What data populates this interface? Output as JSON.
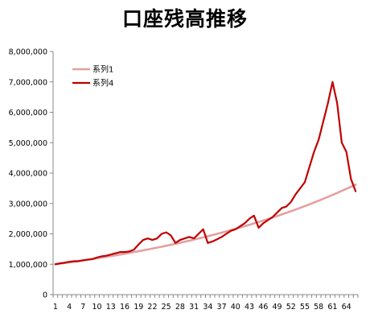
{
  "chart_data": {
    "type": "line",
    "title": "口座残高推移",
    "xlabel": "",
    "ylabel": "",
    "ylim": [
      0,
      8000000
    ],
    "y_ticks": [
      "0",
      "1,000,000",
      "2,000,000",
      "3,000,000",
      "4,000,000",
      "5,000,000",
      "6,000,000",
      "7,000,000",
      "8,000,000"
    ],
    "x_tick_labels": [
      "1",
      "4",
      "7",
      "10",
      "13",
      "16",
      "19",
      "22",
      "25",
      "28",
      "31",
      "34",
      "37",
      "40",
      "43",
      "46",
      "49",
      "52",
      "55",
      "58",
      "61",
      "64"
    ],
    "grid": false,
    "legend_position": "top-left",
    "x": [
      1,
      2,
      3,
      4,
      5,
      6,
      7,
      8,
      9,
      10,
      11,
      12,
      13,
      14,
      15,
      16,
      17,
      18,
      19,
      20,
      21,
      22,
      23,
      24,
      25,
      26,
      27,
      28,
      29,
      30,
      31,
      32,
      33,
      34,
      35,
      36,
      37,
      38,
      39,
      40,
      41,
      42,
      43,
      44,
      45,
      46,
      47,
      48,
      49,
      50,
      51,
      52,
      53,
      54,
      55,
      56,
      57,
      58,
      59,
      60,
      61,
      62,
      63,
      64,
      65,
      66
    ],
    "series": [
      {
        "name": "系列1",
        "color": "#e3a0a0",
        "values": [
          1000000,
          1020000,
          1040000,
          1061000,
          1082000,
          1104000,
          1126000,
          1149000,
          1172000,
          1195000,
          1219000,
          1243000,
          1268000,
          1293000,
          1319000,
          1346000,
          1373000,
          1400000,
          1428000,
          1457000,
          1486000,
          1516000,
          1546000,
          1577000,
          1608000,
          1641000,
          1673000,
          1707000,
          1741000,
          1776000,
          1811000,
          1848000,
          1885000,
          1922000,
          1961000,
          2000000,
          2040000,
          2081000,
          2122000,
          2165000,
          2208000,
          2252000,
          2297000,
          2343000,
          2390000,
          2438000,
          2487000,
          2536000,
          2587000,
          2639000,
          2692000,
          2745000,
          2800000,
          2856000,
          2913000,
          2972000,
          3031000,
          3092000,
          3154000,
          3217000,
          3281000,
          3347000,
          3414000,
          3482000,
          3551000,
          3622000
        ]
      },
      {
        "name": "系列4",
        "color": "#c00000",
        "values": [
          1000000,
          1030000,
          1050000,
          1080000,
          1100000,
          1100000,
          1130000,
          1150000,
          1170000,
          1220000,
          1260000,
          1280000,
          1320000,
          1360000,
          1400000,
          1400000,
          1420000,
          1480000,
          1650000,
          1800000,
          1850000,
          1800000,
          1850000,
          2000000,
          2050000,
          1950000,
          1700000,
          1800000,
          1850000,
          1900000,
          1850000,
          2000000,
          2150000,
          1700000,
          1750000,
          1820000,
          1900000,
          2000000,
          2100000,
          2150000,
          2250000,
          2350000,
          2500000,
          2600000,
          2200000,
          2350000,
          2450000,
          2550000,
          2700000,
          2850000,
          2900000,
          3050000,
          3300000,
          3500000,
          3700000,
          4200000,
          4700000,
          5100000,
          5700000,
          6300000,
          7000000,
          6300000,
          5000000,
          4700000,
          3800000,
          3400000
        ]
      }
    ]
  }
}
